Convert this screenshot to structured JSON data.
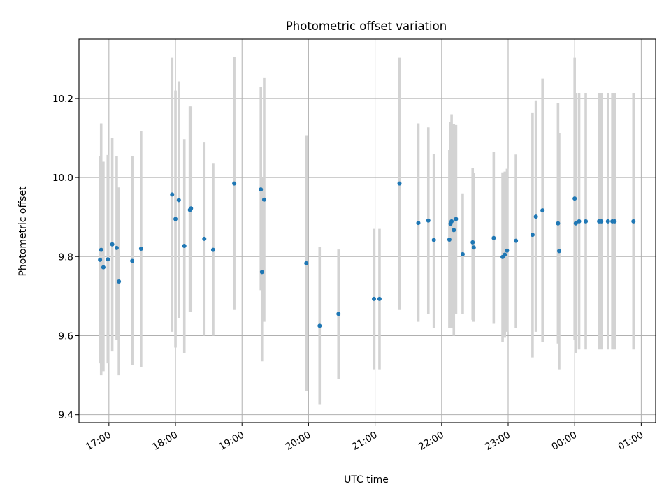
{
  "chart_data": {
    "type": "scatter",
    "title": "Photometric offset variation",
    "xlabel": "UTC time",
    "ylabel": "Photometric offset",
    "xlim": [
      "16:33",
      "01:13"
    ],
    "ylim": [
      9.38,
      10.35
    ],
    "x_ticks": [
      "17:00",
      "18:00",
      "19:00",
      "20:00",
      "21:00",
      "22:00",
      "23:00",
      "00:00",
      "01:00"
    ],
    "y_ticks": [
      "9.4",
      "9.6",
      "9.8",
      "10.0",
      "10.2"
    ],
    "grid": true,
    "point_color": "#1f77b4",
    "errorbar_color": "#d3d3d3",
    "points": [
      {
        "x": "16:52",
        "y": 9.792,
        "lo": 9.53,
        "hi": 10.055
      },
      {
        "x": "16:53",
        "y": 9.817,
        "lo": 9.5,
        "hi": 10.137
      },
      {
        "x": "16:55",
        "y": 9.773,
        "lo": 9.51,
        "hi": 10.04
      },
      {
        "x": "16:59",
        "y": 9.793,
        "lo": 9.53,
        "hi": 10.057
      },
      {
        "x": "17:03",
        "y": 9.831,
        "lo": 9.56,
        "hi": 10.1
      },
      {
        "x": "17:07",
        "y": 9.822,
        "lo": 9.59,
        "hi": 10.055
      },
      {
        "x": "17:09",
        "y": 9.737,
        "lo": 9.5,
        "hi": 9.975
      },
      {
        "x": "17:21",
        "y": 9.789,
        "lo": 9.525,
        "hi": 10.055
      },
      {
        "x": "17:29",
        "y": 9.82,
        "lo": 9.52,
        "hi": 10.118
      },
      {
        "x": "17:57",
        "y": 9.957,
        "lo": 9.61,
        "hi": 10.303
      },
      {
        "x": "18:00",
        "y": 9.895,
        "lo": 9.57,
        "hi": 10.22
      },
      {
        "x": "18:03",
        "y": 9.943,
        "lo": 9.645,
        "hi": 10.243
      },
      {
        "x": "18:08",
        "y": 9.827,
        "lo": 9.555,
        "hi": 10.097
      },
      {
        "x": "18:13",
        "y": 9.918,
        "lo": 9.66,
        "hi": 10.18
      },
      {
        "x": "18:14",
        "y": 9.922,
        "lo": 9.66,
        "hi": 10.18
      },
      {
        "x": "18:26",
        "y": 9.845,
        "lo": 9.6,
        "hi": 10.09
      },
      {
        "x": "18:34",
        "y": 9.817,
        "lo": 9.6,
        "hi": 10.035
      },
      {
        "x": "18:53",
        "y": 9.985,
        "lo": 9.665,
        "hi": 10.304
      },
      {
        "x": "19:17",
        "y": 9.97,
        "lo": 9.715,
        "hi": 10.228
      },
      {
        "x": "19:18",
        "y": 9.761,
        "lo": 9.535,
        "hi": 10.0
      },
      {
        "x": "19:20",
        "y": 9.944,
        "lo": 9.635,
        "hi": 10.253
      },
      {
        "x": "19:58",
        "y": 9.783,
        "lo": 9.46,
        "hi": 10.107
      },
      {
        "x": "20:10",
        "y": 9.625,
        "lo": 9.425,
        "hi": 9.824
      },
      {
        "x": "20:27",
        "y": 9.655,
        "lo": 9.49,
        "hi": 9.818
      },
      {
        "x": "20:59",
        "y": 9.693,
        "lo": 9.515,
        "hi": 9.87
      },
      {
        "x": "21:04",
        "y": 9.693,
        "lo": 9.515,
        "hi": 9.87
      },
      {
        "x": "21:22",
        "y": 9.985,
        "lo": 9.665,
        "hi": 10.303
      },
      {
        "x": "21:39",
        "y": 9.885,
        "lo": 9.635,
        "hi": 10.137
      },
      {
        "x": "21:48",
        "y": 9.891,
        "lo": 9.655,
        "hi": 10.127
      },
      {
        "x": "21:53",
        "y": 9.842,
        "lo": 9.62,
        "hi": 10.06
      },
      {
        "x": "22:07",
        "y": 9.843,
        "lo": 9.62,
        "hi": 10.07
      },
      {
        "x": "22:08",
        "y": 9.883,
        "lo": 9.625,
        "hi": 10.14
      },
      {
        "x": "22:09",
        "y": 9.889,
        "lo": 9.62,
        "hi": 10.16
      },
      {
        "x": "22:11",
        "y": 9.867,
        "lo": 9.6,
        "hi": 10.135
      },
      {
        "x": "22:13",
        "y": 9.895,
        "lo": 9.655,
        "hi": 10.133
      },
      {
        "x": "22:19",
        "y": 9.806,
        "lo": 9.655,
        "hi": 9.96
      },
      {
        "x": "22:28",
        "y": 9.836,
        "lo": 9.64,
        "hi": 10.025
      },
      {
        "x": "22:29",
        "y": 9.823,
        "lo": 9.635,
        "hi": 10.012
      },
      {
        "x": "22:47",
        "y": 9.847,
        "lo": 9.63,
        "hi": 10.065
      },
      {
        "x": "22:55",
        "y": 9.799,
        "lo": 9.585,
        "hi": 10.013
      },
      {
        "x": "22:57",
        "y": 9.805,
        "lo": 9.595,
        "hi": 10.015
      },
      {
        "x": "22:59",
        "y": 9.815,
        "lo": 9.61,
        "hi": 10.022
      },
      {
        "x": "23:07",
        "y": 9.84,
        "lo": 9.62,
        "hi": 10.058
      },
      {
        "x": "23:22",
        "y": 9.855,
        "lo": 9.545,
        "hi": 10.163
      },
      {
        "x": "23:25",
        "y": 9.901,
        "lo": 9.61,
        "hi": 10.195
      },
      {
        "x": "23:31",
        "y": 9.917,
        "lo": 9.585,
        "hi": 10.25
      },
      {
        "x": "23:45",
        "y": 9.884,
        "lo": 9.58,
        "hi": 10.188
      },
      {
        "x": "23:46",
        "y": 9.814,
        "lo": 9.515,
        "hi": 10.113
      },
      {
        "x": "00:00",
        "y": 9.947,
        "lo": 9.59,
        "hi": 10.303
      },
      {
        "x": "00:01",
        "y": 9.884,
        "lo": 9.555,
        "hi": 10.214
      },
      {
        "x": "00:04",
        "y": 9.889,
        "lo": 9.565,
        "hi": 10.214
      },
      {
        "x": "00:10",
        "y": 9.889,
        "lo": 9.565,
        "hi": 10.214
      },
      {
        "x": "00:22",
        "y": 9.889,
        "lo": 9.565,
        "hi": 10.214
      },
      {
        "x": "00:24",
        "y": 9.889,
        "lo": 9.565,
        "hi": 10.214
      },
      {
        "x": "00:30",
        "y": 9.889,
        "lo": 9.565,
        "hi": 10.214
      },
      {
        "x": "00:34",
        "y": 9.889,
        "lo": 9.565,
        "hi": 10.214
      },
      {
        "x": "00:36",
        "y": 9.889,
        "lo": 9.565,
        "hi": 10.214
      },
      {
        "x": "00:53",
        "y": 9.889,
        "lo": 9.565,
        "hi": 10.214
      }
    ]
  }
}
